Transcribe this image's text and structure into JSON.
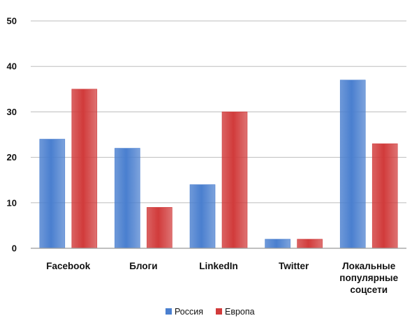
{
  "chart_data": {
    "type": "bar",
    "categories": [
      [
        "Facebook"
      ],
      [
        "Блоги"
      ],
      [
        "LinkedIn"
      ],
      [
        "Twitter"
      ],
      [
        "Локальные",
        "популярные",
        "соцсети"
      ]
    ],
    "series": [
      {
        "name": "Россия",
        "values": [
          24,
          22,
          14,
          2,
          37
        ],
        "color": "#4a7fcf"
      },
      {
        "name": "Европа",
        "values": [
          35,
          9,
          30,
          2,
          23
        ],
        "color": "#d13b3b"
      }
    ],
    "ylim": [
      0,
      50
    ],
    "yticks": [
      "0",
      "10",
      "20",
      "30",
      "40",
      "50"
    ],
    "grid": true,
    "legend": "bottom-center",
    "title": "",
    "xlabel": "",
    "ylabel": ""
  }
}
